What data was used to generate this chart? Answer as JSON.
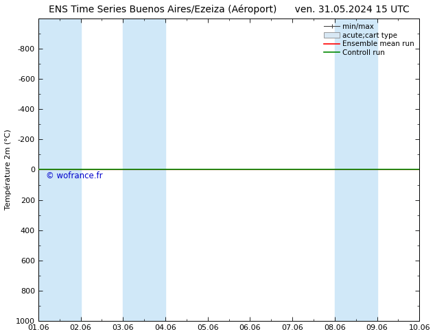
{
  "title_left": "ENS Time Series Buenos Aires/Ezeiza (Aéroport)",
  "title_right": "ven. 31.05.2024 15 UTC",
  "ylabel": "Température 2m (°C)",
  "ylim_top": -1000,
  "ylim_bottom": 1000,
  "xlim_start": 0,
  "xlim_end": 9,
  "xtick_positions": [
    0,
    1,
    2,
    3,
    4,
    5,
    6,
    7,
    8,
    9
  ],
  "xtick_labels": [
    "01.06",
    "02.06",
    "03.06",
    "04.06",
    "05.06",
    "06.06",
    "07.06",
    "08.06",
    "09.06",
    "10.06"
  ],
  "ytick_values": [
    -800,
    -600,
    -400,
    -200,
    0,
    200,
    400,
    600,
    800,
    1000
  ],
  "shaded_bands": [
    [
      0,
      1
    ],
    [
      2,
      3
    ],
    [
      7,
      8
    ],
    [
      9,
      9.5
    ]
  ],
  "shaded_color": "#d0e8f8",
  "ensemble_mean_color": "#ff0000",
  "control_run_color": "#008800",
  "watermark": "© wofrance.fr",
  "watermark_color": "#0000cc",
  "background_color": "#ffffff",
  "legend_items": [
    "min/max",
    "acute;cart type",
    "Ensemble mean run",
    "Controll run"
  ],
  "title_fontsize": 10,
  "axis_fontsize": 8,
  "tick_fontsize": 8,
  "legend_fontsize": 7.5
}
